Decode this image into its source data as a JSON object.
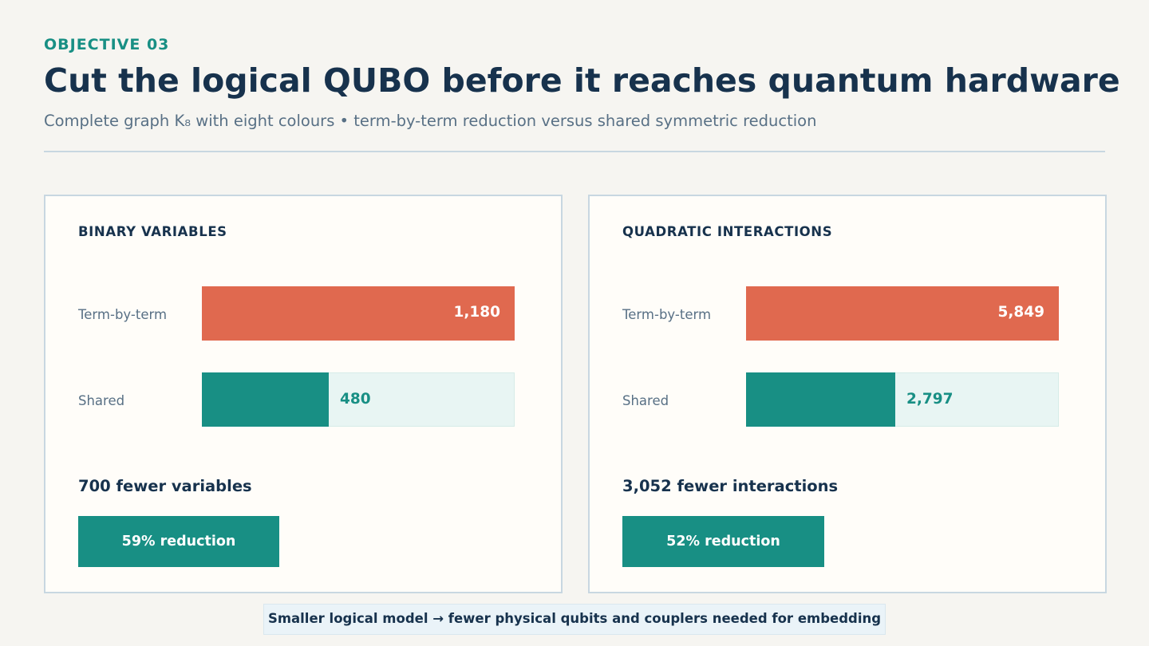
{
  "header": {
    "eyebrow": "OBJECTIVE 03",
    "title": "Cut the logical QUBO before it reaches quantum hardware",
    "subtitle": "Complete graph K₈ with eight colours  •  term-by-term reduction versus shared symmetric reduction"
  },
  "colors": {
    "term_by_term": "#e0694f",
    "shared": "#188f84",
    "title": "#17324d",
    "muted": "#587085"
  },
  "panels": [
    {
      "title": "BINARY VARIABLES",
      "rows": [
        {
          "label": "Term-by-term",
          "value": 1180,
          "display": "1,180"
        },
        {
          "label": "Shared",
          "value": 480,
          "display": "480"
        }
      ],
      "summary": "700 fewer variables",
      "badge": "59% reduction"
    },
    {
      "title": "QUADRATIC INTERACTIONS",
      "rows": [
        {
          "label": "Term-by-term",
          "value": 5849,
          "display": "5,849"
        },
        {
          "label": "Shared",
          "value": 2797,
          "display": "2,797"
        }
      ],
      "summary": "3,052 fewer interactions",
      "badge": "52% reduction"
    }
  ],
  "chart_data": [
    {
      "type": "bar",
      "title": "BINARY VARIABLES",
      "categories": [
        "Term-by-term",
        "Shared"
      ],
      "values": [
        1180,
        480
      ],
      "orientation": "horizontal"
    },
    {
      "type": "bar",
      "title": "QUADRATIC INTERACTIONS",
      "categories": [
        "Term-by-term",
        "Shared"
      ],
      "values": [
        5849,
        2797
      ],
      "orientation": "horizontal"
    }
  ],
  "footer": {
    "text": "Smaller logical model  →  fewer physical qubits and couplers needed for embedding"
  }
}
